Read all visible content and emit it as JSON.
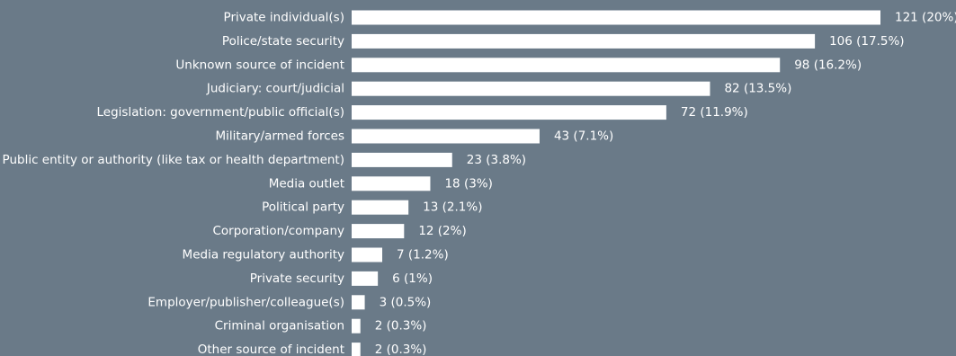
{
  "chart_data": {
    "type": "bar",
    "orientation": "horizontal",
    "title": "",
    "xlabel": "",
    "ylabel": "",
    "categories": [
      "Private individual(s)",
      "Police/state security",
      "Unknown source of incident",
      "Judiciary: court/judicial",
      "Legislation: government/public official(s)",
      "Military/armed forces",
      "Public entity or authority (like tax or health department)",
      "Media outlet",
      "Political party",
      "Corporation/company",
      "Media regulatory authority",
      "Private security",
      "Employer/publisher/colleague(s)",
      "Criminal organisation",
      "Other source of incident"
    ],
    "values": [
      121,
      106,
      98,
      82,
      72,
      43,
      23,
      18,
      13,
      12,
      7,
      6,
      3,
      2,
      2
    ],
    "data_labels": [
      "121 (20%)",
      "106 (17.5%)",
      "98 (16.2%)",
      "82 (13.5%)",
      "72 (11.9%)",
      "43 (7.1%)",
      "23 (3.8%)",
      "18 (3%)",
      "13 (2.1%)",
      "12 (2%)",
      "7 (1.2%)",
      "6 (1%)",
      "3 (0.5%)",
      "2 (0.3%)",
      "2 (0.3%)"
    ],
    "xlim": [
      0,
      121
    ],
    "grid": false,
    "legend": "none",
    "colors": {
      "background": "#6a7a88",
      "bar": "#ffffff",
      "text": "#ffffff"
    }
  }
}
